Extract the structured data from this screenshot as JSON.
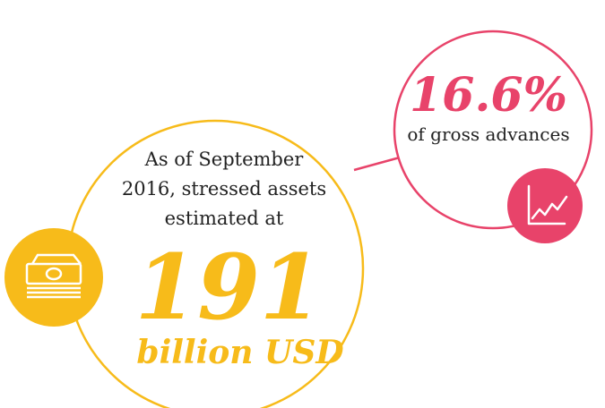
{
  "left": {
    "lines": [
      "As of September",
      "2016, stressed assets",
      "estimated at"
    ],
    "figure": "191",
    "unit": "billion USD"
  },
  "right": {
    "figure": "16.6%",
    "caption": "of gross advances"
  }
}
